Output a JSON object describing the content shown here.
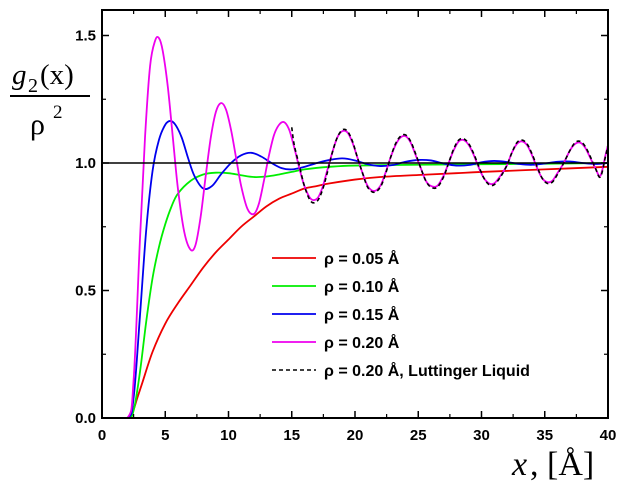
{
  "chart_data": {
    "type": "line",
    "xlabel": {
      "var": "x",
      "rest": ", [Å]"
    },
    "ylabel": {
      "numerator": "g",
      "subscript": "2",
      "arg": "(x)",
      "denominator": "ρ",
      "power": "2"
    },
    "xlim": [
      0,
      40
    ],
    "ylim": [
      0,
      1.6
    ],
    "xticks": [
      0,
      5,
      10,
      15,
      20,
      25,
      30,
      35,
      40
    ],
    "yticks": [
      0.0,
      0.5,
      1.0,
      1.5
    ],
    "xtick_labels": [
      "0",
      "5",
      "10",
      "15",
      "20",
      "25",
      "30",
      "35",
      "40"
    ],
    "ytick_labels": [
      "0.0",
      "0.5",
      "1.0",
      "1.5"
    ],
    "reference_line": {
      "y": 1.0,
      "color": "#000000"
    },
    "legend_position": "lower-right",
    "grid": false,
    "series": [
      {
        "name": "ρ = 0.05 Å",
        "color": "#ee0000",
        "dash": "solid",
        "x": [
          0,
          2.0,
          2.4,
          2.8,
          3.2,
          4.0,
          5.0,
          6.0,
          7.0,
          8.0,
          9.0,
          10.0,
          11.0,
          12.0,
          13.0,
          14.0,
          15.0,
          16.0,
          17.0,
          18.0,
          20.0,
          22.0,
          25.0,
          28.0,
          30.0,
          35.0,
          40.0
        ],
        "y": [
          0,
          0,
          0.02,
          0.08,
          0.14,
          0.26,
          0.37,
          0.45,
          0.52,
          0.59,
          0.65,
          0.7,
          0.75,
          0.79,
          0.83,
          0.86,
          0.88,
          0.9,
          0.91,
          0.92,
          0.935,
          0.945,
          0.953,
          0.96,
          0.965,
          0.975,
          0.985
        ]
      },
      {
        "name": "ρ = 0.10 Å",
        "color": "#00ee00",
        "dash": "solid",
        "x": [
          0,
          2.0,
          2.5,
          3.0,
          3.5,
          4.0,
          4.5,
          5.0,
          5.5,
          6.0,
          7.0,
          8.0,
          9.0,
          10.0,
          11.0,
          12.0,
          13.0,
          14.0,
          15.0,
          16.0,
          18.0,
          20.0,
          25.0,
          30.0,
          35.0,
          40.0
        ],
        "y": [
          0,
          0,
          0.03,
          0.18,
          0.38,
          0.55,
          0.67,
          0.76,
          0.83,
          0.88,
          0.93,
          0.955,
          0.962,
          0.96,
          0.952,
          0.945,
          0.947,
          0.955,
          0.965,
          0.975,
          0.985,
          0.99,
          0.993,
          0.995,
          0.997,
          1.0
        ]
      },
      {
        "name": "ρ = 0.15 Å",
        "color": "#0000ee",
        "dash": "solid",
        "period": 6.667,
        "x_start": 2.0,
        "x": [
          0,
          2.0,
          2.5,
          3.0,
          3.5,
          4.0,
          4.5,
          5.0,
          5.4,
          5.8,
          6.3,
          6.8,
          7.3,
          8.0,
          8.7,
          9.4,
          10.2,
          11.0,
          11.8,
          12.6,
          13.4,
          14.2,
          15.0,
          16.0,
          17.0,
          18.0,
          19.0,
          20.0,
          21.0,
          22.0,
          23.0,
          24.0,
          25.0,
          26.0,
          27.0,
          28.0,
          29.0,
          30.0,
          31.0,
          32.0,
          33.0,
          34.0,
          35.0,
          36.0,
          37.0,
          38.0,
          39.0,
          40.0
        ],
        "y": [
          0,
          0,
          0.08,
          0.4,
          0.74,
          0.97,
          1.09,
          1.15,
          1.165,
          1.15,
          1.1,
          1.02,
          0.95,
          0.9,
          0.91,
          0.955,
          1.0,
          1.03,
          1.04,
          1.025,
          1.0,
          0.98,
          0.975,
          0.985,
          1.0,
          1.012,
          1.018,
          1.01,
          0.995,
          0.988,
          0.992,
          1.005,
          1.012,
          1.01,
          0.998,
          0.99,
          0.992,
          1.003,
          1.008,
          1.004,
          0.996,
          0.993,
          0.998,
          1.005,
          1.006,
          1.0,
          0.996,
          1.0
        ]
      },
      {
        "name": "ρ = 0.20 Å",
        "color": "#ee00ee",
        "dash": "solid",
        "x": [
          0,
          2.0,
          2.5,
          3.0,
          3.4,
          3.8,
          4.2,
          4.5,
          4.8,
          5.2,
          5.6,
          6.0,
          6.5,
          7.0,
          7.4,
          7.8,
          8.2,
          8.6,
          9.0,
          9.4,
          9.8,
          10.2,
          10.6,
          11.0,
          11.5,
          12.0,
          12.4,
          12.8,
          13.2,
          13.6,
          14.0,
          14.4,
          14.8,
          15.2,
          15.6,
          16.0,
          16.5,
          17.0,
          17.4,
          17.8,
          18.2,
          18.6,
          19.0,
          19.4,
          19.8,
          20.2,
          20.6,
          21.0,
          21.5,
          22.0,
          22.4,
          22.8,
          23.2,
          23.6,
          24.0,
          24.4,
          24.8,
          25.2,
          25.6,
          26.0,
          26.5,
          27.0,
          27.4,
          27.8,
          28.2,
          28.6,
          29.0,
          29.4,
          29.8,
          30.2,
          30.6,
          31.0,
          31.5,
          32.0,
          32.4,
          32.8,
          33.2,
          33.6,
          34.0,
          34.4,
          34.8,
          35.2,
          35.6,
          36.0,
          36.5,
          37.0,
          37.4,
          37.8,
          38.2,
          38.6,
          39.0,
          39.4,
          39.8,
          40.0
        ],
        "y": [
          0,
          0,
          0.15,
          0.7,
          1.1,
          1.38,
          1.48,
          1.49,
          1.44,
          1.3,
          1.1,
          0.9,
          0.73,
          0.66,
          0.68,
          0.79,
          0.95,
          1.1,
          1.2,
          1.235,
          1.21,
          1.13,
          1.02,
          0.91,
          0.82,
          0.8,
          0.84,
          0.93,
          1.03,
          1.11,
          1.15,
          1.16,
          1.13,
          1.06,
          0.98,
          0.91,
          0.86,
          0.86,
          0.9,
          0.97,
          1.04,
          1.1,
          1.125,
          1.12,
          1.08,
          1.02,
          0.96,
          0.91,
          0.89,
          0.91,
          0.96,
          1.02,
          1.07,
          1.1,
          1.105,
          1.08,
          1.03,
          0.98,
          0.93,
          0.91,
          0.91,
          0.95,
          1.0,
          1.05,
          1.085,
          1.09,
          1.07,
          1.03,
          0.98,
          0.94,
          0.92,
          0.92,
          0.95,
          0.99,
          1.04,
          1.075,
          1.085,
          1.07,
          1.03,
          0.98,
          0.94,
          0.925,
          0.93,
          0.96,
          1.0,
          1.05,
          1.075,
          1.08,
          1.06,
          1.02,
          0.98,
          0.95,
          1.03,
          1.07
        ]
      },
      {
        "name": "ρ = 0.20 Å, Luttinger Liquid",
        "color": "#000000",
        "dash": "dashed",
        "x": [
          15.0,
          15.2,
          15.6,
          16.0,
          16.5,
          17.0,
          17.4,
          17.8,
          18.2,
          18.6,
          19.0,
          19.4,
          19.8,
          20.2,
          20.6,
          21.0,
          21.5,
          22.0,
          22.4,
          22.8,
          23.2,
          23.6,
          24.0,
          24.4,
          24.8,
          25.2,
          25.6,
          26.0,
          26.5,
          27.0,
          27.4,
          27.8,
          28.2,
          28.6,
          29.0,
          29.4,
          29.8,
          30.2,
          30.6,
          31.0,
          31.5,
          32.0,
          32.4,
          32.8,
          33.2,
          33.6,
          34.0,
          34.4,
          34.8,
          35.2,
          35.6,
          36.0,
          36.5,
          37.0,
          37.4,
          37.8,
          38.2,
          38.6,
          39.0,
          39.4,
          39.8,
          40.0
        ],
        "y": [
          1.14,
          1.07,
          0.99,
          0.91,
          0.85,
          0.85,
          0.89,
          0.96,
          1.04,
          1.1,
          1.13,
          1.125,
          1.085,
          1.02,
          0.96,
          0.905,
          0.885,
          0.905,
          0.955,
          1.02,
          1.075,
          1.105,
          1.11,
          1.085,
          1.035,
          0.98,
          0.93,
          0.905,
          0.905,
          0.945,
          1.0,
          1.055,
          1.09,
          1.095,
          1.075,
          1.035,
          0.985,
          0.94,
          0.915,
          0.915,
          0.945,
          0.99,
          1.04,
          1.08,
          1.09,
          1.075,
          1.035,
          0.985,
          0.94,
          0.92,
          0.925,
          0.955,
          1.0,
          1.05,
          1.08,
          1.085,
          1.065,
          1.025,
          0.98,
          0.945,
          1.025,
          1.07
        ]
      }
    ]
  }
}
